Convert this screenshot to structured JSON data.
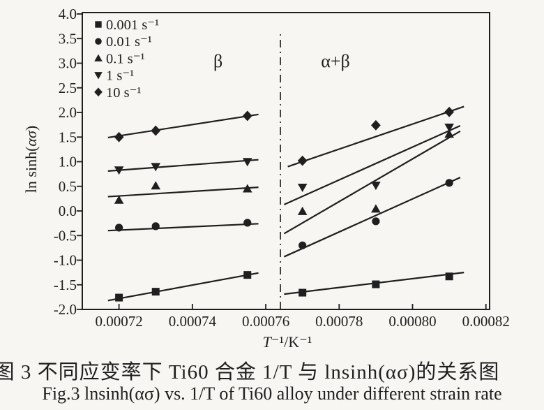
{
  "colors": {
    "ink": "#1f1f1f",
    "paper": "#f7f6f2"
  },
  "figure": {
    "caption_zh": "图 3  不同应变率下 Ti60 合金 1/T 与 lnsinh(ασ)的关系图",
    "caption_en": "Fig.3  lnsinh(ασ) vs. 1/T of Ti60 alloy under different strain rate"
  },
  "chart_data": {
    "type": "scatter",
    "title": "",
    "xlabel": "T⁻¹/K⁻¹",
    "ylabel": "ln sinh(ασ)",
    "xlabel_parts": [
      {
        "t": "T",
        "i": 1
      },
      {
        "t": "⁻¹/K⁻¹",
        "i": 0
      }
    ],
    "ylabel_parts": [
      {
        "t": "ln sinh(",
        "i": 0
      },
      {
        "t": "ασ",
        "i": 1
      },
      {
        "t": ")",
        "i": 0
      }
    ],
    "xlim": [
      0.00071,
      0.000821
    ],
    "ylim": [
      -2.0,
      4.0
    ],
    "x_ticks": [
      0.00072,
      0.00074,
      0.00076,
      0.00078,
      0.0008,
      0.00082
    ],
    "x_tick_labels": [
      "0.00072",
      "0.00074",
      "0.00076",
      "0.00078",
      "0.00080",
      "0.00082"
    ],
    "y_ticks": [
      -2.0,
      -1.5,
      -1.0,
      -0.5,
      0.0,
      0.5,
      1.0,
      1.5,
      2.0,
      2.5,
      3.0,
      3.5,
      4.0
    ],
    "y_tick_labels": [
      "-2.0",
      "-1.5",
      "-1.0",
      "-0.5",
      "0.0",
      "0.5",
      "1.0",
      "1.5",
      "2.0",
      "2.5",
      "3.0",
      "3.5",
      "4.0"
    ],
    "grid": false,
    "legend_position": "upper-left-inside",
    "phase_boundary": {
      "x": 0.000764,
      "style": "dash-dot",
      "v_from": -2.0,
      "v_to": 3.62
    },
    "regions": [
      {
        "label": "β",
        "x": 0.000747,
        "v": 3.05
      },
      {
        "label": "α+β",
        "x": 0.000779,
        "v": 3.05
      }
    ],
    "series": [
      {
        "name": "0.001 s⁻¹",
        "marker": "square",
        "points": [
          [
            0.00072,
            -1.76
          ],
          [
            0.00073,
            -1.64
          ],
          [
            0.000755,
            -1.3
          ],
          [
            0.00077,
            -1.66
          ],
          [
            0.00079,
            -1.49
          ],
          [
            0.00081,
            -1.33
          ]
        ],
        "fit_lines": [
          [
            [
              0.000717,
              -1.82
            ],
            [
              0.000758,
              -1.26
            ]
          ],
          [
            [
              0.000765,
              -1.69
            ],
            [
              0.000814,
              -1.25
            ]
          ]
        ]
      },
      {
        "name": "0.01 s⁻¹",
        "marker": "circle",
        "points": [
          [
            0.00072,
            -0.34
          ],
          [
            0.00073,
            -0.31
          ],
          [
            0.000755,
            -0.24
          ],
          [
            0.00077,
            -0.7
          ],
          [
            0.00079,
            -0.21
          ],
          [
            0.00081,
            0.57
          ]
        ],
        "fit_lines": [
          [
            [
              0.000717,
              -0.4
            ],
            [
              0.000758,
              -0.26
            ]
          ],
          [
            [
              0.000765,
              -0.93
            ],
            [
              0.000813,
              0.68
            ]
          ]
        ]
      },
      {
        "name": "0.1 s⁻¹",
        "marker": "triangle-up",
        "points": [
          [
            0.00072,
            0.22
          ],
          [
            0.00073,
            0.51
          ],
          [
            0.000755,
            0.45
          ],
          [
            0.00077,
            -0.01
          ],
          [
            0.00079,
            0.04
          ],
          [
            0.00081,
            1.56
          ]
        ],
        "fit_lines": [
          [
            [
              0.000717,
              0.29
            ],
            [
              0.000758,
              0.48
            ]
          ],
          [
            [
              0.000765,
              -0.46
            ],
            [
              0.000813,
              1.62
            ]
          ]
        ]
      },
      {
        "name": "1 s⁻¹",
        "marker": "triangle-down",
        "points": [
          [
            0.00072,
            0.83
          ],
          [
            0.00073,
            0.9
          ],
          [
            0.000755,
            1.0
          ],
          [
            0.00077,
            0.48
          ],
          [
            0.00079,
            0.52
          ],
          [
            0.00081,
            1.7
          ]
        ],
        "fit_lines": [
          [
            [
              0.000717,
              0.81
            ],
            [
              0.000758,
              1.04
            ]
          ],
          [
            [
              0.000765,
              0.13
            ],
            [
              0.000813,
              1.73
            ]
          ]
        ]
      },
      {
        "name": "10 s⁻¹",
        "marker": "diamond",
        "points": [
          [
            0.00072,
            1.5
          ],
          [
            0.00073,
            1.63
          ],
          [
            0.000755,
            1.93
          ],
          [
            0.00077,
            1.02
          ],
          [
            0.00079,
            1.74
          ],
          [
            0.00081,
            2.01
          ]
        ],
        "fit_lines": [
          [
            [
              0.000717,
              1.49
            ],
            [
              0.000758,
              1.96
            ]
          ],
          [
            [
              0.000766,
              0.9
            ],
            [
              0.000814,
              2.12
            ]
          ]
        ]
      }
    ]
  }
}
